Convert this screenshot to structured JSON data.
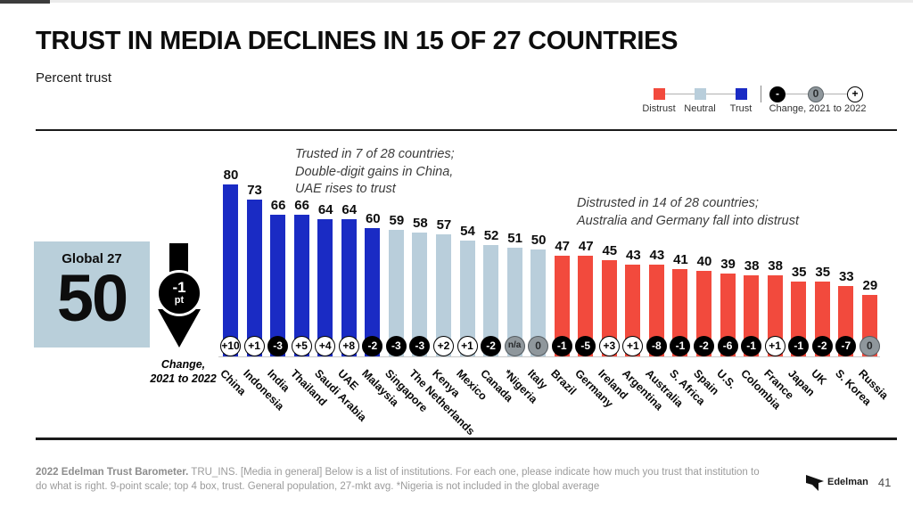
{
  "header": {
    "title": "TRUST IN MEDIA DECLINES IN 15 OF 27 COUNTRIES",
    "subtitle": "Percent trust"
  },
  "legend": {
    "categories": [
      {
        "label": "Distrust",
        "color": "#f24a3d"
      },
      {
        "label": "Neutral",
        "color": "#b9cedb"
      },
      {
        "label": "Trust",
        "color": "#1a2bc4"
      }
    ],
    "change": {
      "label": "Change, 2021 to 2022",
      "minus": "-",
      "zero": "0",
      "plus": "+"
    }
  },
  "global_panel": {
    "label": "Global 27",
    "value": "50",
    "change_value": "-1",
    "change_unit": "pt",
    "caption": "Change,\n2021 to 2022"
  },
  "annotations": {
    "trusted": "Trusted in 7 of 28 countries;\nDouble-digit gains in China,\nUAE rises to trust",
    "distrusted": "Distrusted in 14 of 28 countries;\nAustralia and Germany fall into distrust"
  },
  "chart_data": {
    "type": "bar",
    "title": "TRUST IN MEDIA DECLINES IN 15 OF 27 COUNTRIES",
    "subtitle": "Percent trust",
    "ylim": [
      0,
      85
    ],
    "grid": false,
    "legend_position": "top-right",
    "categories": [
      "China",
      "Indonesia",
      "India",
      "Thailand",
      "Saudi Arabia",
      "UAE",
      "Malaysia",
      "Singapore",
      "The Netherlands",
      "Kenya",
      "Mexico",
      "Canada",
      "*Nigeria",
      "Italy",
      "Brazil",
      "Germany",
      "Ireland",
      "Argentina",
      "Australia",
      "S. Africa",
      "Spain",
      "U.S.",
      "Colombia",
      "France",
      "Japan",
      "UK",
      "S. Korea",
      "Russia"
    ],
    "values": [
      80,
      73,
      66,
      66,
      64,
      64,
      60,
      59,
      58,
      57,
      54,
      52,
      51,
      50,
      47,
      47,
      45,
      43,
      43,
      41,
      40,
      39,
      38,
      38,
      35,
      35,
      33,
      29
    ],
    "changes": [
      "+10",
      "+1",
      "-3",
      "+5",
      "+4",
      "+8",
      "-2",
      "-3",
      "-3",
      "+2",
      "+1",
      "-2",
      "n/a",
      "0",
      "-1",
      "-5",
      "+3",
      "+1",
      "-8",
      "-1",
      "-2",
      "-6",
      "-1",
      "+1",
      "-1",
      "-2",
      "-7",
      "0"
    ],
    "groups": [
      "trust",
      "trust",
      "trust",
      "trust",
      "trust",
      "trust",
      "trust",
      "neutral",
      "neutral",
      "neutral",
      "neutral",
      "neutral",
      "neutral",
      "neutral",
      "distrust",
      "distrust",
      "distrust",
      "distrust",
      "distrust",
      "distrust",
      "distrust",
      "distrust",
      "distrust",
      "distrust",
      "distrust",
      "distrust",
      "distrust",
      "distrust"
    ],
    "group_colors": {
      "trust": "#1a2bc4",
      "neutral": "#b9cedb",
      "distrust": "#f24a3d"
    },
    "global_average": {
      "label": "Global 27",
      "value": 50,
      "change": "-1 pt"
    }
  },
  "footer": {
    "note_bold": "2022 Edelman Trust Barometer.",
    "note_rest": " TRU_INS. [Media in general] Below is a list of institutions. For each one, please indicate how much you trust that institution to do what is right. 9-point scale; top 4 box, trust. General population, 27-mkt avg. *Nigeria is not included in the global average",
    "brand": "Edelman",
    "page": "41"
  }
}
